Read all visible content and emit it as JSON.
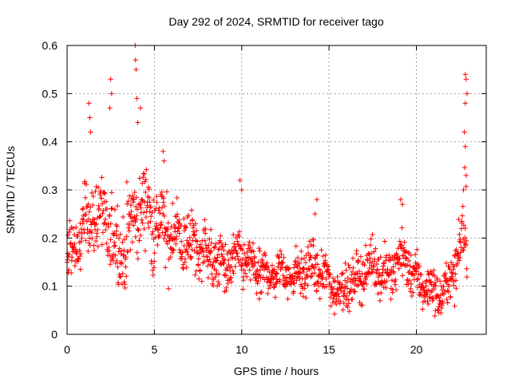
{
  "chart_data": {
    "type": "scatter",
    "title": "Day 292 of 2024, SRMTID for receiver tago",
    "xlabel": "GPS time / hours",
    "ylabel": "SRMTID / TECUs",
    "xlim": [
      0,
      24
    ],
    "ylim": [
      0,
      0.6
    ],
    "xticks": [
      0,
      5,
      10,
      15,
      20
    ],
    "xtick_labels": [
      "0",
      "5",
      "10",
      "15",
      "20"
    ],
    "yticks": [
      0,
      0.1,
      0.2,
      0.3,
      0.4,
      0.5,
      0.6
    ],
    "ytick_labels": [
      "0",
      "0.1",
      "0.2",
      "0.3",
      "0.4",
      "0.5",
      "0.6"
    ],
    "grid": true,
    "marker": "+",
    "series": [
      {
        "name": "SRMTID",
        "color": "#ff0000",
        "trend": {
          "x": [
            0,
            0.5,
            1,
            1.5,
            2,
            2.5,
            3,
            3.5,
            4,
            4.5,
            5,
            5.5,
            6,
            6.5,
            7,
            7.5,
            8,
            8.5,
            9,
            9.5,
            10,
            10.5,
            11,
            11.5,
            12,
            12.5,
            13,
            13.5,
            14,
            14.5,
            15,
            15.5,
            16,
            16.5,
            17,
            17.5,
            18,
            18.5,
            19,
            19.5,
            20,
            20.5,
            21,
            21.5,
            22,
            22.5,
            22.8
          ],
          "y": [
            0.16,
            0.19,
            0.23,
            0.25,
            0.24,
            0.21,
            0.17,
            0.2,
            0.26,
            0.27,
            0.23,
            0.22,
            0.21,
            0.2,
            0.19,
            0.18,
            0.17,
            0.15,
            0.14,
            0.15,
            0.16,
            0.14,
            0.13,
            0.12,
            0.13,
            0.13,
            0.12,
            0.13,
            0.14,
            0.13,
            0.11,
            0.09,
            0.1,
            0.11,
            0.13,
            0.15,
            0.13,
            0.12,
            0.16,
            0.15,
            0.11,
            0.1,
            0.09,
            0.08,
            0.12,
            0.18,
            0.24
          ]
        },
        "spread": {
          "x": [
            0,
            2,
            4,
            6,
            8,
            10,
            12,
            14,
            16,
            18,
            20,
            22,
            22.8
          ],
          "y": [
            0.05,
            0.07,
            0.08,
            0.065,
            0.05,
            0.045,
            0.04,
            0.04,
            0.04,
            0.045,
            0.04,
            0.035,
            0.09
          ]
        },
        "peaks": [
          {
            "x": 1.25,
            "y": 0.48
          },
          {
            "x": 1.3,
            "y": 0.45
          },
          {
            "x": 1.35,
            "y": 0.42
          },
          {
            "x": 2.5,
            "y": 0.53
          },
          {
            "x": 2.55,
            "y": 0.5
          },
          {
            "x": 2.45,
            "y": 0.47
          },
          {
            "x": 3.9,
            "y": 0.6
          },
          {
            "x": 3.92,
            "y": 0.57
          },
          {
            "x": 3.95,
            "y": 0.55
          },
          {
            "x": 4.0,
            "y": 0.49
          },
          {
            "x": 4.2,
            "y": 0.47
          },
          {
            "x": 4.05,
            "y": 0.44
          },
          {
            "x": 5.5,
            "y": 0.38
          },
          {
            "x": 5.55,
            "y": 0.36
          },
          {
            "x": 9.9,
            "y": 0.32
          },
          {
            "x": 10.0,
            "y": 0.3
          },
          {
            "x": 14.3,
            "y": 0.28
          },
          {
            "x": 14.2,
            "y": 0.25
          },
          {
            "x": 19.1,
            "y": 0.28
          },
          {
            "x": 19.2,
            "y": 0.27
          },
          {
            "x": 22.8,
            "y": 0.54
          },
          {
            "x": 22.85,
            "y": 0.53
          },
          {
            "x": 22.9,
            "y": 0.5
          },
          {
            "x": 22.8,
            "y": 0.48
          },
          {
            "x": 22.75,
            "y": 0.42
          },
          {
            "x": 22.8,
            "y": 0.39
          },
          {
            "x": 22.85,
            "y": 0.33
          },
          {
            "x": 22.7,
            "y": 0.3
          }
        ],
        "sample_interval_hours": 0.0167,
        "x_range": [
          0,
          22.9
        ]
      }
    ]
  }
}
